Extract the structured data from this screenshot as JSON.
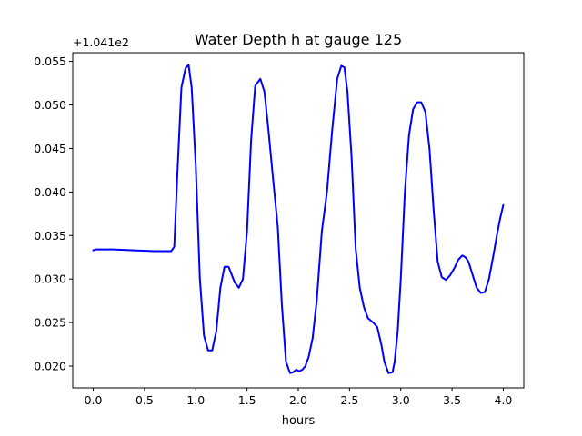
{
  "chart_data": {
    "type": "line",
    "title": "Water Depth h at gauge 125",
    "xlabel": "hours",
    "ylabel": "",
    "offset_text": "+1.041e2",
    "xlim": [
      -0.2,
      4.2
    ],
    "ylim": [
      0.0175,
      0.056
    ],
    "xticks": [
      0.0,
      0.5,
      1.0,
      1.5,
      2.0,
      2.5,
      3.0,
      3.5,
      4.0
    ],
    "xtick_labels": [
      "0.0",
      "0.5",
      "1.0",
      "1.5",
      "2.0",
      "2.5",
      "3.0",
      "3.5",
      "4.0"
    ],
    "yticks": [
      0.02,
      0.025,
      0.03,
      0.035,
      0.04,
      0.045,
      0.05,
      0.055
    ],
    "ytick_labels": [
      "0.020",
      "0.025",
      "0.030",
      "0.035",
      "0.040",
      "0.045",
      "0.050",
      "0.055"
    ],
    "grid": false,
    "legend": "none",
    "series": [
      {
        "color": "#0000ff",
        "x": [
          0.0,
          0.02,
          0.2,
          0.4,
          0.6,
          0.7,
          0.76,
          0.79,
          0.82,
          0.86,
          0.9,
          0.93,
          0.96,
          1.0,
          1.04,
          1.08,
          1.12,
          1.16,
          1.2,
          1.24,
          1.28,
          1.32,
          1.35,
          1.38,
          1.42,
          1.46,
          1.5,
          1.54,
          1.58,
          1.63,
          1.67,
          1.71,
          1.75,
          1.8,
          1.84,
          1.88,
          1.92,
          1.95,
          1.98,
          2.01,
          2.04,
          2.07,
          2.08,
          2.1,
          2.14,
          2.18,
          2.23,
          2.28,
          2.33,
          2.38,
          2.42,
          2.45,
          2.48,
          2.52,
          2.56,
          2.6,
          2.64,
          2.68,
          2.73,
          2.77,
          2.81,
          2.84,
          2.88,
          2.92,
          2.94,
          2.97,
          3.0,
          3.04,
          3.08,
          3.12,
          3.16,
          3.2,
          3.24,
          3.28,
          3.32,
          3.36,
          3.4,
          3.44,
          3.48,
          3.52,
          3.56,
          3.6,
          3.63,
          3.66,
          3.7,
          3.74,
          3.78,
          3.82,
          3.86,
          3.9,
          3.94,
          3.97,
          4.0
        ],
        "y": [
          0.0333,
          0.0334,
          0.0334,
          0.0333,
          0.0332,
          0.0332,
          0.0332,
          0.0337,
          0.042,
          0.052,
          0.0542,
          0.0546,
          0.052,
          0.043,
          0.03,
          0.0235,
          0.0218,
          0.0218,
          0.024,
          0.029,
          0.0314,
          0.0314,
          0.0305,
          0.0296,
          0.029,
          0.03,
          0.0355,
          0.046,
          0.0522,
          0.053,
          0.0515,
          0.047,
          0.042,
          0.036,
          0.027,
          0.0205,
          0.0192,
          0.0193,
          0.0196,
          0.0194,
          0.0196,
          0.02,
          0.0204,
          0.021,
          0.0232,
          0.0275,
          0.0355,
          0.04,
          0.047,
          0.053,
          0.0545,
          0.0543,
          0.0515,
          0.044,
          0.0335,
          0.029,
          0.0268,
          0.0255,
          0.025,
          0.0245,
          0.0225,
          0.0205,
          0.0192,
          0.0193,
          0.0205,
          0.024,
          0.03,
          0.04,
          0.0465,
          0.0495,
          0.0503,
          0.0503,
          0.0492,
          0.045,
          0.038,
          0.032,
          0.0302,
          0.0299,
          0.0304,
          0.0312,
          0.0322,
          0.0327,
          0.0325,
          0.032,
          0.0305,
          0.029,
          0.0284,
          0.0285,
          0.03,
          0.0325,
          0.0352,
          0.037,
          0.0385
        ]
      }
    ]
  }
}
